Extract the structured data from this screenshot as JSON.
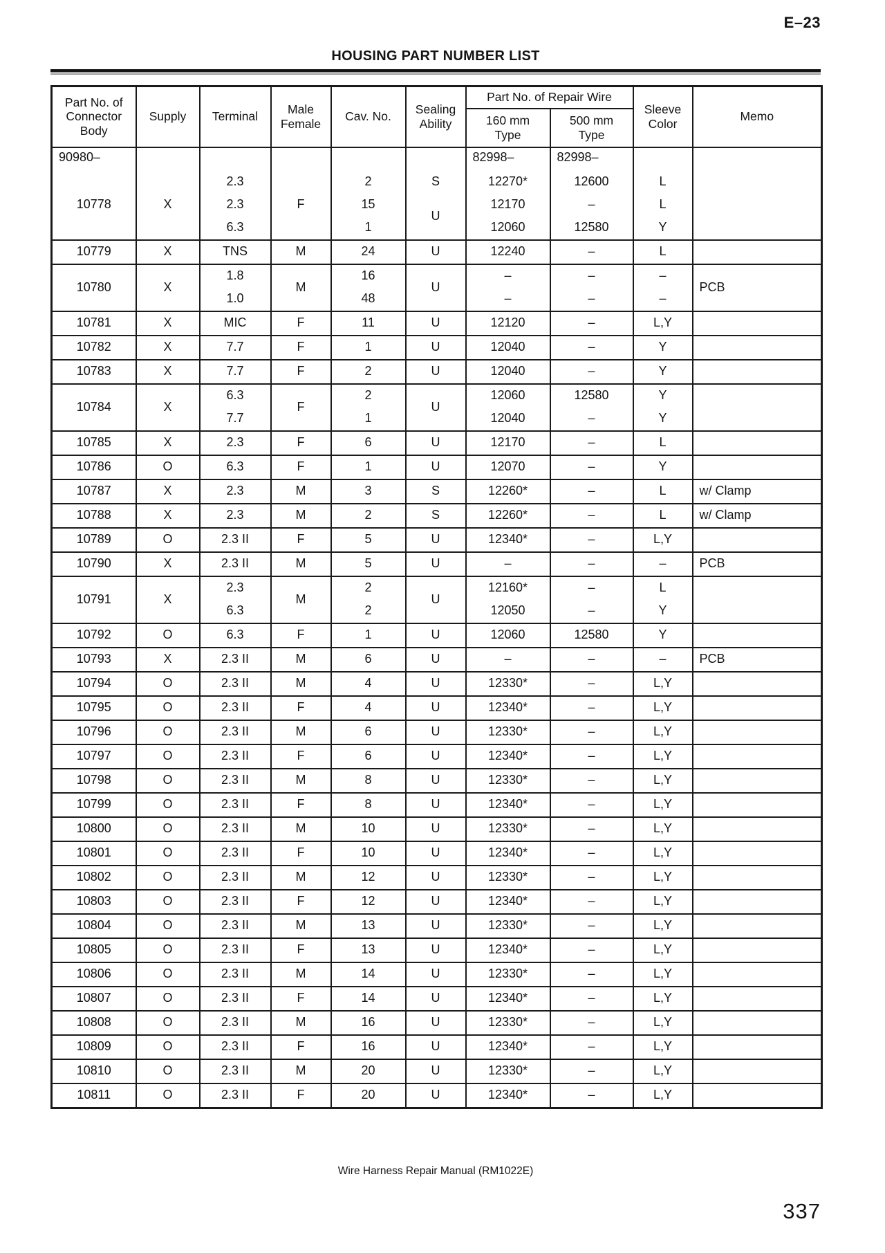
{
  "page": {
    "code": "E–23",
    "title": "HOUSING PART NUMBER LIST",
    "footer": "Wire Harness Repair Manual (RM1022E)",
    "page_number": "337"
  },
  "table": {
    "headers": {
      "part": "Part No. of Connector Body",
      "supply": "Supply",
      "terminal": "Terminal",
      "male_female": "Male Female",
      "cav_no": "Cav. No.",
      "sealing": "Sealing Ability",
      "repair_wire": "Part No. of Repair Wire",
      "type_160": "160 mm\nType",
      "type_500": "500 mm\nType",
      "sleeve": "Sleeve Color",
      "memo": "Memo"
    },
    "groups": [
      {
        "part": "10778",
        "prefix": "90980–",
        "supply": "X",
        "mf": "F",
        "seal_rest": "U",
        "w160_prefix": "82998–",
        "w500_prefix": "82998–",
        "memo": "",
        "lines": [
          {
            "terminal": "2.3",
            "cav": "2",
            "seal": "S",
            "w160": "12270*",
            "w500": "12600",
            "sleeve": "L"
          },
          {
            "terminal": "2.3",
            "cav": "15",
            "w160": "12170",
            "w500": "–",
            "sleeve": "L"
          },
          {
            "terminal": "6.3",
            "cav": "1",
            "w160": "12060",
            "w500": "12580",
            "sleeve": "Y"
          }
        ]
      },
      {
        "part": "10779",
        "supply": "X",
        "mf": "M",
        "memo": "",
        "lines": [
          {
            "terminal": "TNS",
            "cav": "24",
            "seal": "U",
            "w160": "12240",
            "w500": "–",
            "sleeve": "L"
          }
        ]
      },
      {
        "part": "10780",
        "supply": "X",
        "mf": "M",
        "seal_rest": "U",
        "memo": "PCB",
        "lines": [
          {
            "terminal": "1.8",
            "cav": "16",
            "w160": "–",
            "w500": "–",
            "sleeve": "–"
          },
          {
            "terminal": "1.0",
            "cav": "48",
            "w160": "–",
            "w500": "–",
            "sleeve": "–"
          }
        ]
      },
      {
        "part": "10781",
        "supply": "X",
        "mf": "F",
        "memo": "",
        "lines": [
          {
            "terminal": "MIC",
            "cav": "11",
            "seal": "U",
            "w160": "12120",
            "w500": "–",
            "sleeve": "L,Y"
          }
        ]
      },
      {
        "part": "10782",
        "supply": "X",
        "mf": "F",
        "memo": "",
        "lines": [
          {
            "terminal": "7.7",
            "cav": "1",
            "seal": "U",
            "w160": "12040",
            "w500": "–",
            "sleeve": "Y"
          }
        ]
      },
      {
        "part": "10783",
        "supply": "X",
        "mf": "F",
        "memo": "",
        "lines": [
          {
            "terminal": "7.7",
            "cav": "2",
            "seal": "U",
            "w160": "12040",
            "w500": "–",
            "sleeve": "Y"
          }
        ]
      },
      {
        "part": "10784",
        "supply": "X",
        "mf": "F",
        "seal_rest": "U",
        "memo": "",
        "lines": [
          {
            "terminal": "6.3",
            "cav": "2",
            "w160": "12060",
            "w500": "12580",
            "sleeve": "Y"
          },
          {
            "terminal": "7.7",
            "cav": "1",
            "w160": "12040",
            "w500": "–",
            "sleeve": "Y"
          }
        ]
      },
      {
        "part": "10785",
        "supply": "X",
        "mf": "F",
        "memo": "",
        "lines": [
          {
            "terminal": "2.3",
            "cav": "6",
            "seal": "U",
            "w160": "12170",
            "w500": "–",
            "sleeve": "L"
          }
        ]
      },
      {
        "part": "10786",
        "supply": "O",
        "mf": "F",
        "memo": "",
        "lines": [
          {
            "terminal": "6.3",
            "cav": "1",
            "seal": "U",
            "w160": "12070",
            "w500": "–",
            "sleeve": "Y"
          }
        ]
      },
      {
        "part": "10787",
        "supply": "X",
        "mf": "M",
        "memo": "w/ Clamp",
        "lines": [
          {
            "terminal": "2.3",
            "cav": "3",
            "seal": "S",
            "w160": "12260*",
            "w500": "–",
            "sleeve": "L"
          }
        ]
      },
      {
        "part": "10788",
        "supply": "X",
        "mf": "M",
        "memo": "w/ Clamp",
        "lines": [
          {
            "terminal": "2.3",
            "cav": "2",
            "seal": "S",
            "w160": "12260*",
            "w500": "–",
            "sleeve": "L"
          }
        ]
      },
      {
        "part": "10789",
        "supply": "O",
        "mf": "F",
        "memo": "",
        "lines": [
          {
            "terminal": "2.3 II",
            "cav": "5",
            "seal": "U",
            "w160": "12340*",
            "w500": "–",
            "sleeve": "L,Y"
          }
        ]
      },
      {
        "part": "10790",
        "supply": "X",
        "mf": "M",
        "memo": "PCB",
        "lines": [
          {
            "terminal": "2.3 II",
            "cav": "5",
            "seal": "U",
            "w160": "–",
            "w500": "–",
            "sleeve": "–"
          }
        ]
      },
      {
        "part": "10791",
        "supply": "X",
        "mf": "M",
        "seal_rest": "U",
        "memo": "",
        "lines": [
          {
            "terminal": "2.3",
            "cav": "2",
            "w160": "12160*",
            "w500": "–",
            "sleeve": "L"
          },
          {
            "terminal": "6.3",
            "cav": "2",
            "w160": "12050",
            "w500": "–",
            "sleeve": "Y"
          }
        ]
      },
      {
        "part": "10792",
        "supply": "O",
        "mf": "F",
        "memo": "",
        "lines": [
          {
            "terminal": "6.3",
            "cav": "1",
            "seal": "U",
            "w160": "12060",
            "w500": "12580",
            "sleeve": "Y"
          }
        ]
      },
      {
        "part": "10793",
        "supply": "X",
        "mf": "M",
        "memo": "PCB",
        "lines": [
          {
            "terminal": "2.3 II",
            "cav": "6",
            "seal": "U",
            "w160": "–",
            "w500": "–",
            "sleeve": "–"
          }
        ]
      },
      {
        "part": "10794",
        "supply": "O",
        "mf": "M",
        "memo": "",
        "lines": [
          {
            "terminal": "2.3 II",
            "cav": "4",
            "seal": "U",
            "w160": "12330*",
            "w500": "–",
            "sleeve": "L,Y"
          }
        ]
      },
      {
        "part": "10795",
        "supply": "O",
        "mf": "F",
        "memo": "",
        "lines": [
          {
            "terminal": "2.3 II",
            "cav": "4",
            "seal": "U",
            "w160": "12340*",
            "w500": "–",
            "sleeve": "L,Y"
          }
        ]
      },
      {
        "part": "10796",
        "supply": "O",
        "mf": "M",
        "memo": "",
        "lines": [
          {
            "terminal": "2.3 II",
            "cav": "6",
            "seal": "U",
            "w160": "12330*",
            "w500": "–",
            "sleeve": "L,Y"
          }
        ]
      },
      {
        "part": "10797",
        "supply": "O",
        "mf": "F",
        "memo": "",
        "lines": [
          {
            "terminal": "2.3 II",
            "cav": "6",
            "seal": "U",
            "w160": "12340*",
            "w500": "–",
            "sleeve": "L,Y"
          }
        ]
      },
      {
        "part": "10798",
        "supply": "O",
        "mf": "M",
        "memo": "",
        "lines": [
          {
            "terminal": "2.3 II",
            "cav": "8",
            "seal": "U",
            "w160": "12330*",
            "w500": "–",
            "sleeve": "L,Y"
          }
        ]
      },
      {
        "part": "10799",
        "supply": "O",
        "mf": "F",
        "memo": "",
        "lines": [
          {
            "terminal": "2.3 II",
            "cav": "8",
            "seal": "U",
            "w160": "12340*",
            "w500": "–",
            "sleeve": "L,Y"
          }
        ]
      },
      {
        "part": "10800",
        "supply": "O",
        "mf": "M",
        "memo": "",
        "lines": [
          {
            "terminal": "2.3 II",
            "cav": "10",
            "seal": "U",
            "w160": "12330*",
            "w500": "–",
            "sleeve": "L,Y"
          }
        ]
      },
      {
        "part": "10801",
        "supply": "O",
        "mf": "F",
        "memo": "",
        "lines": [
          {
            "terminal": "2.3 II",
            "cav": "10",
            "seal": "U",
            "w160": "12340*",
            "w500": "–",
            "sleeve": "L,Y"
          }
        ]
      },
      {
        "part": "10802",
        "supply": "O",
        "mf": "M",
        "memo": "",
        "lines": [
          {
            "terminal": "2.3 II",
            "cav": "12",
            "seal": "U",
            "w160": "12330*",
            "w500": "–",
            "sleeve": "L,Y"
          }
        ]
      },
      {
        "part": "10803",
        "supply": "O",
        "mf": "F",
        "memo": "",
        "lines": [
          {
            "terminal": "2.3 II",
            "cav": "12",
            "seal": "U",
            "w160": "12340*",
            "w500": "–",
            "sleeve": "L,Y"
          }
        ]
      },
      {
        "part": "10804",
        "supply": "O",
        "mf": "M",
        "memo": "",
        "lines": [
          {
            "terminal": "2.3 II",
            "cav": "13",
            "seal": "U",
            "w160": "12330*",
            "w500": "–",
            "sleeve": "L,Y"
          }
        ]
      },
      {
        "part": "10805",
        "supply": "O",
        "mf": "F",
        "memo": "",
        "lines": [
          {
            "terminal": "2.3 II",
            "cav": "13",
            "seal": "U",
            "w160": "12340*",
            "w500": "–",
            "sleeve": "L,Y"
          }
        ]
      },
      {
        "part": "10806",
        "supply": "O",
        "mf": "M",
        "memo": "",
        "lines": [
          {
            "terminal": "2.3 II",
            "cav": "14",
            "seal": "U",
            "w160": "12330*",
            "w500": "–",
            "sleeve": "L,Y"
          }
        ]
      },
      {
        "part": "10807",
        "supply": "O",
        "mf": "F",
        "memo": "",
        "lines": [
          {
            "terminal": "2.3 II",
            "cav": "14",
            "seal": "U",
            "w160": "12340*",
            "w500": "–",
            "sleeve": "L,Y"
          }
        ]
      },
      {
        "part": "10808",
        "supply": "O",
        "mf": "M",
        "memo": "",
        "lines": [
          {
            "terminal": "2.3 II",
            "cav": "16",
            "seal": "U",
            "w160": "12330*",
            "w500": "–",
            "sleeve": "L,Y"
          }
        ]
      },
      {
        "part": "10809",
        "supply": "O",
        "mf": "F",
        "memo": "",
        "lines": [
          {
            "terminal": "2.3 II",
            "cav": "16",
            "seal": "U",
            "w160": "12340*",
            "w500": "–",
            "sleeve": "L,Y"
          }
        ]
      },
      {
        "part": "10810",
        "supply": "O",
        "mf": "M",
        "memo": "",
        "lines": [
          {
            "terminal": "2.3 II",
            "cav": "20",
            "seal": "U",
            "w160": "12330*",
            "w500": "–",
            "sleeve": "L,Y"
          }
        ]
      },
      {
        "part": "10811",
        "supply": "O",
        "mf": "F",
        "memo": "",
        "lines": [
          {
            "terminal": "2.3 II",
            "cav": "20",
            "seal": "U",
            "w160": "12340*",
            "w500": "–",
            "sleeve": "L,Y"
          }
        ]
      }
    ]
  }
}
